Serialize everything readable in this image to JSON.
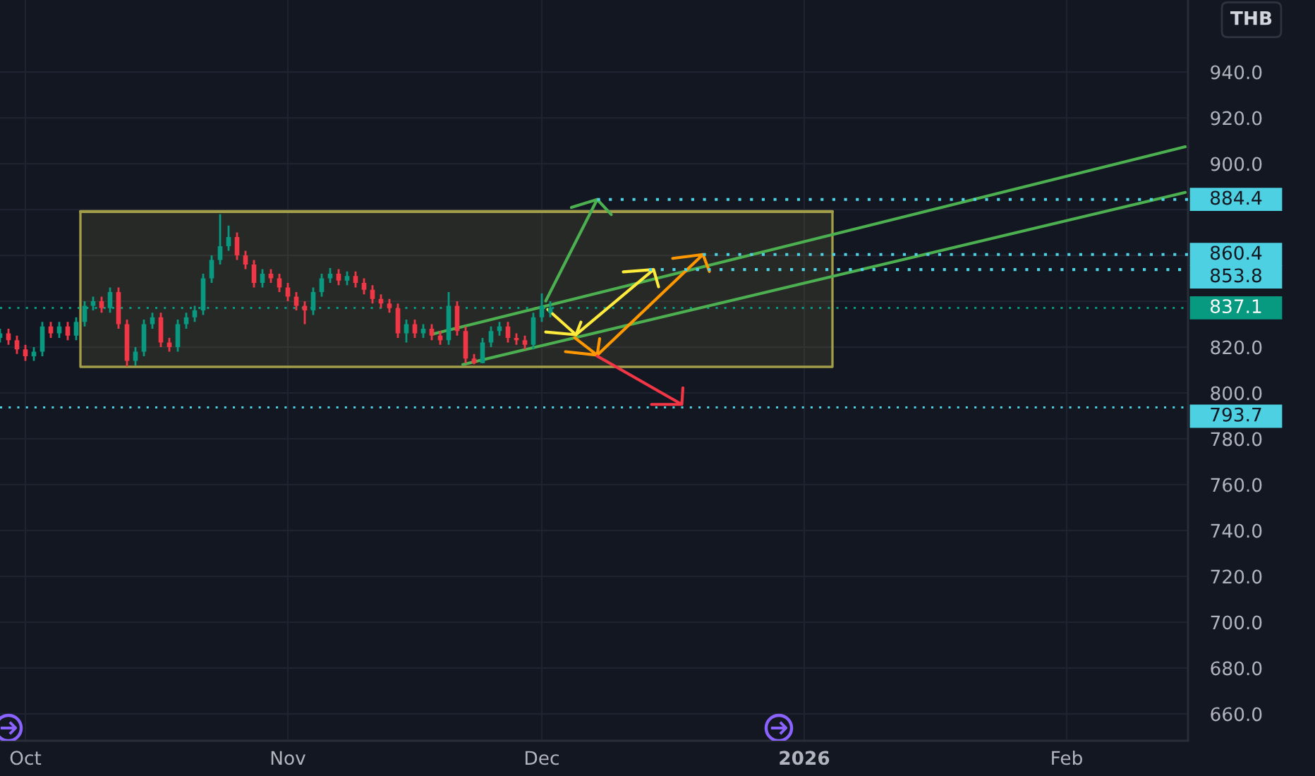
{
  "chart_data": {
    "type": "candlestick",
    "ylabel": "THB",
    "x": [
      "2025-09-28",
      "2025-09-29",
      "2025-09-30",
      "2025-10-01",
      "2025-10-02",
      "2025-10-03",
      "2025-10-04",
      "2025-10-05",
      "2025-10-06",
      "2025-10-07",
      "2025-10-08",
      "2025-10-09",
      "2025-10-10",
      "2025-10-11",
      "2025-10-12",
      "2025-10-13",
      "2025-10-14",
      "2025-10-15",
      "2025-10-16",
      "2025-10-17",
      "2025-10-18",
      "2025-10-19",
      "2025-10-20",
      "2025-10-21",
      "2025-10-22",
      "2025-10-23",
      "2025-10-24",
      "2025-10-25",
      "2025-10-26",
      "2025-10-27",
      "2025-10-28",
      "2025-10-29",
      "2025-10-30",
      "2025-10-31",
      "2025-11-01",
      "2025-11-02",
      "2025-11-03",
      "2025-11-04",
      "2025-11-05",
      "2025-11-06",
      "2025-11-07",
      "2025-11-08",
      "2025-11-09",
      "2025-11-10",
      "2025-11-11",
      "2025-11-12",
      "2025-11-13",
      "2025-11-14",
      "2025-11-15",
      "2025-11-16",
      "2025-11-17",
      "2025-11-18",
      "2025-11-19",
      "2025-11-20",
      "2025-11-21",
      "2025-11-22",
      "2025-11-23",
      "2025-11-24",
      "2025-11-25",
      "2025-11-26",
      "2025-11-27",
      "2025-11-28",
      "2025-11-29",
      "2025-11-30",
      "2025-12-01",
      "2025-12-02"
    ],
    "ohlc": [
      [
        824,
        828,
        822,
        826
      ],
      [
        826,
        828,
        821,
        823
      ],
      [
        823,
        825,
        817,
        819
      ],
      [
        819,
        821,
        814,
        816
      ],
      [
        816,
        820,
        814,
        818
      ],
      [
        818,
        831,
        816,
        829
      ],
      [
        829,
        831,
        824,
        826
      ],
      [
        826,
        831,
        824,
        829
      ],
      [
        829,
        831,
        823,
        825
      ],
      [
        825,
        833,
        823,
        831
      ],
      [
        831,
        840,
        829,
        838
      ],
      [
        838,
        842,
        836,
        840
      ],
      [
        840,
        842,
        835,
        837
      ],
      [
        837,
        846,
        835,
        844
      ],
      [
        844,
        846,
        828,
        830
      ],
      [
        830,
        832,
        811.5,
        814
      ],
      [
        814,
        820,
        812,
        818
      ],
      [
        818,
        832,
        816,
        830
      ],
      [
        830,
        835,
        828,
        833
      ],
      [
        833,
        835,
        820,
        822
      ],
      [
        822,
        824,
        818,
        820
      ],
      [
        820,
        832,
        818,
        830
      ],
      [
        830,
        835,
        828,
        833
      ],
      [
        833,
        838,
        831,
        836
      ],
      [
        836,
        852,
        834,
        850
      ],
      [
        850,
        860,
        848,
        858
      ],
      [
        858,
        878,
        856,
        864
      ],
      [
        864,
        873,
        862,
        868
      ],
      [
        868,
        870,
        858,
        860
      ],
      [
        860,
        862,
        854,
        856
      ],
      [
        856,
        858,
        846,
        848
      ],
      [
        848,
        854,
        846,
        852
      ],
      [
        852,
        854,
        848,
        850
      ],
      [
        850,
        852,
        844,
        846
      ],
      [
        846,
        848,
        840,
        842
      ],
      [
        842,
        844,
        836,
        838
      ],
      [
        838,
        840,
        830,
        836
      ],
      [
        836,
        846,
        834,
        844
      ],
      [
        844,
        852,
        842,
        850
      ],
      [
        850,
        854.5,
        848,
        852
      ],
      [
        852,
        854,
        847,
        849
      ],
      [
        849,
        853,
        847,
        851
      ],
      [
        851,
        853,
        846,
        848
      ],
      [
        848,
        850,
        843,
        845
      ],
      [
        845,
        847,
        839,
        841
      ],
      [
        841,
        843,
        837,
        839
      ],
      [
        839,
        841,
        835,
        837
      ],
      [
        837,
        839,
        824,
        826
      ],
      [
        826,
        832,
        822,
        830
      ],
      [
        830,
        832,
        824,
        826
      ],
      [
        826,
        830,
        824,
        828
      ],
      [
        828,
        830,
        823,
        825
      ],
      [
        825,
        827,
        821,
        823
      ],
      [
        823,
        844,
        821,
        838
      ],
      [
        838,
        840,
        825,
        827
      ],
      [
        827,
        829,
        813,
        815
      ],
      [
        815,
        817,
        812.5,
        813
      ],
      [
        813,
        824,
        813,
        822
      ],
      [
        822,
        829,
        820,
        827
      ],
      [
        827,
        831,
        825,
        829
      ],
      [
        829,
        831,
        822,
        824
      ],
      [
        824,
        826,
        821,
        823
      ],
      [
        823,
        825,
        819,
        821
      ],
      [
        821,
        835,
        819,
        833
      ],
      [
        833,
        843.4,
        831,
        838
      ],
      [
        835,
        840,
        833,
        837.1
      ]
    ],
    "colors": [
      "#089981",
      "#f23645",
      "#f23645",
      "#f23645",
      "#089981",
      "#089981",
      "#f23645",
      "#089981",
      "#f23645",
      "#089981",
      "#089981",
      "#089981",
      "#f23645",
      "#089981",
      "#f23645",
      "#f23645",
      "#089981",
      "#089981",
      "#089981",
      "#f23645",
      "#f23645",
      "#089981",
      "#089981",
      "#089981",
      "#089981",
      "#089981",
      "#089981",
      "#089981",
      "#f23645",
      "#f23645",
      "#f23645",
      "#089981",
      "#f23645",
      "#f23645",
      "#f23645",
      "#f23645",
      "#f23645",
      "#089981",
      "#089981",
      "#089981",
      "#f23645",
      "#089981",
      "#f23645",
      "#f23645",
      "#f23645",
      "#f23645",
      "#f23645",
      "#f23645",
      "#089981",
      "#f23645",
      "#089981",
      "#f23645",
      "#f23645",
      "#089981",
      "#f23645",
      "#f23645",
      "#f23645",
      "#089981",
      "#089981",
      "#089981",
      "#f23645",
      "#f23645",
      "#f23645",
      "#089981",
      "#089981",
      "#089981"
    ],
    "xlim": [
      "2025-09-28",
      "2026-02-15T08:00"
    ],
    "xticks": [
      {
        "value": "2025-10-01",
        "label": "Oct"
      },
      {
        "value": "2025-11-01",
        "label": "Nov"
      },
      {
        "value": "2025-12-01",
        "label": "Dec"
      },
      {
        "value": "2026-01-01",
        "label": "2026"
      },
      {
        "value": "2026-02-01",
        "label": "Feb"
      }
    ],
    "ylim": [
      648.3,
      971.4
    ],
    "yticks": [
      {
        "value": 660,
        "label": "660.0"
      },
      {
        "value": 680,
        "label": "680.0"
      },
      {
        "value": 700,
        "label": "700.0"
      },
      {
        "value": 720,
        "label": "720.0"
      },
      {
        "value": 740,
        "label": "740.0"
      },
      {
        "value": 760,
        "label": "760.0"
      },
      {
        "value": 780,
        "label": "780.0"
      },
      {
        "value": 800,
        "label": "800.0"
      },
      {
        "value": 820,
        "label": "820.0"
      },
      {
        "value": 840,
        "label": null
      },
      {
        "value": 860,
        "label": null
      },
      {
        "value": 880,
        "label": null
      },
      {
        "value": 900,
        "label": "900.0"
      },
      {
        "value": 920,
        "label": "920.0"
      },
      {
        "value": 940,
        "label": "940.0"
      }
    ],
    "grid": true,
    "series": [
      {
        "type": "line",
        "x": [
          "2025-10-07T12:00",
          "2026-01-04T08:00"
        ],
        "values": [
          879.1,
          879.1
        ],
        "lower": [
          811.4,
          811.4
        ],
        "upper": [
          879.1,
          879.1
        ],
        "color": "#a19d48"
      },
      {
        "type": "line",
        "x": [
          "2025-11-18T03:00",
          "2026-02-15"
        ],
        "values": [
          825.7,
          907.4
        ],
        "color": "#4caf50"
      },
      {
        "type": "line",
        "x": [
          "2025-11-21T16:00",
          "2026-02-15"
        ],
        "values": [
          812.4,
          887.5
        ],
        "color": "#4caf50"
      },
      {
        "type": "line",
        "x": [
          "2025-12-01T11:00",
          "2025-12-07T13:00",
          "2025-12-04T12:00",
          "2025-12-07T13:00",
          "2025-12-09T05:00"
        ],
        "values": [
          840.1,
          884.4,
          880.9,
          884.4,
          877.8
        ],
        "color": "#4caf50"
      },
      {
        "type": "line",
        "x": [
          "2025-12-01T17:00",
          "2025-12-05T01:00",
          "2025-12-01T11:00",
          "2025-12-05T01:00",
          "2025-12-05T15:00"
        ],
        "values": [
          836.4,
          825.4,
          826.6,
          825.4,
          830.9
        ],
        "color": "#ffeb3b"
      },
      {
        "type": "line",
        "x": [
          "2025-12-05T01:00",
          "2025-12-14T05:00",
          "2025-12-10T15:00",
          "2025-12-14T05:00",
          "2025-12-14T19:00"
        ],
        "values": [
          825.4,
          853.8,
          852.8,
          853.8,
          846.3
        ],
        "color": "#ffeb3b"
      },
      {
        "type": "line",
        "x": [
          "2025-12-04T21:00",
          "2025-12-07T13:00",
          "2025-12-03T19:00",
          "2025-12-07T13:00",
          "2025-12-07T20:00"
        ],
        "values": [
          824.1,
          816.5,
          818.0,
          816.5,
          823.7
        ],
        "color": "#ff9800"
      },
      {
        "type": "line",
        "x": [
          "2025-12-07T13:00",
          "2025-12-20T01:00",
          "2025-12-16T11:00",
          "2025-12-20T01:00",
          "2025-12-20T19:00"
        ],
        "values": [
          816.5,
          860.4,
          858.7,
          860.4,
          853.0
        ],
        "color": "#ff9800"
      },
      {
        "type": "line",
        "x": [
          "2025-12-07T13:00",
          "2025-12-17T13:00",
          "2025-12-13T23:00",
          "2025-12-17T13:00",
          "2025-12-17T16:00"
        ],
        "values": [
          816.1,
          795.0,
          795.0,
          795.0,
          802.2
        ],
        "color": "#f23645"
      },
      {
        "type": "line",
        "x": [
          "2025-12-07T13:00",
          "2026-02-15T08:00"
        ],
        "values": [
          884.4,
          884.4
        ],
        "color": "#4dd0e1",
        "line_style": "dotted",
        "value_labels": [
          null,
          "884.4"
        ]
      },
      {
        "type": "line",
        "x": [
          "2025-12-20T01:00",
          "2026-02-15T08:00"
        ],
        "values": [
          860.4,
          860.4
        ],
        "color": "#4dd0e1",
        "line_style": "dotted",
        "value_labels": [
          null,
          "860.4"
        ]
      },
      {
        "type": "line",
        "x": [
          "2025-12-13T16:00",
          "2026-02-15T08:00"
        ],
        "values": [
          853.8,
          853.8
        ],
        "color": "#4dd0e1",
        "line_style": "dotted",
        "value_labels": [
          null,
          "853.8"
        ]
      }
    ],
    "ref_lines": [
      {
        "axis": "y",
        "value": 793.7,
        "label": "793.7",
        "color": "#4dd0e1",
        "line_style": "dotted"
      },
      {
        "axis": "y",
        "value": 837.1,
        "label": "837.1",
        "color": "#089981",
        "line_style": "dotted"
      }
    ]
  }
}
